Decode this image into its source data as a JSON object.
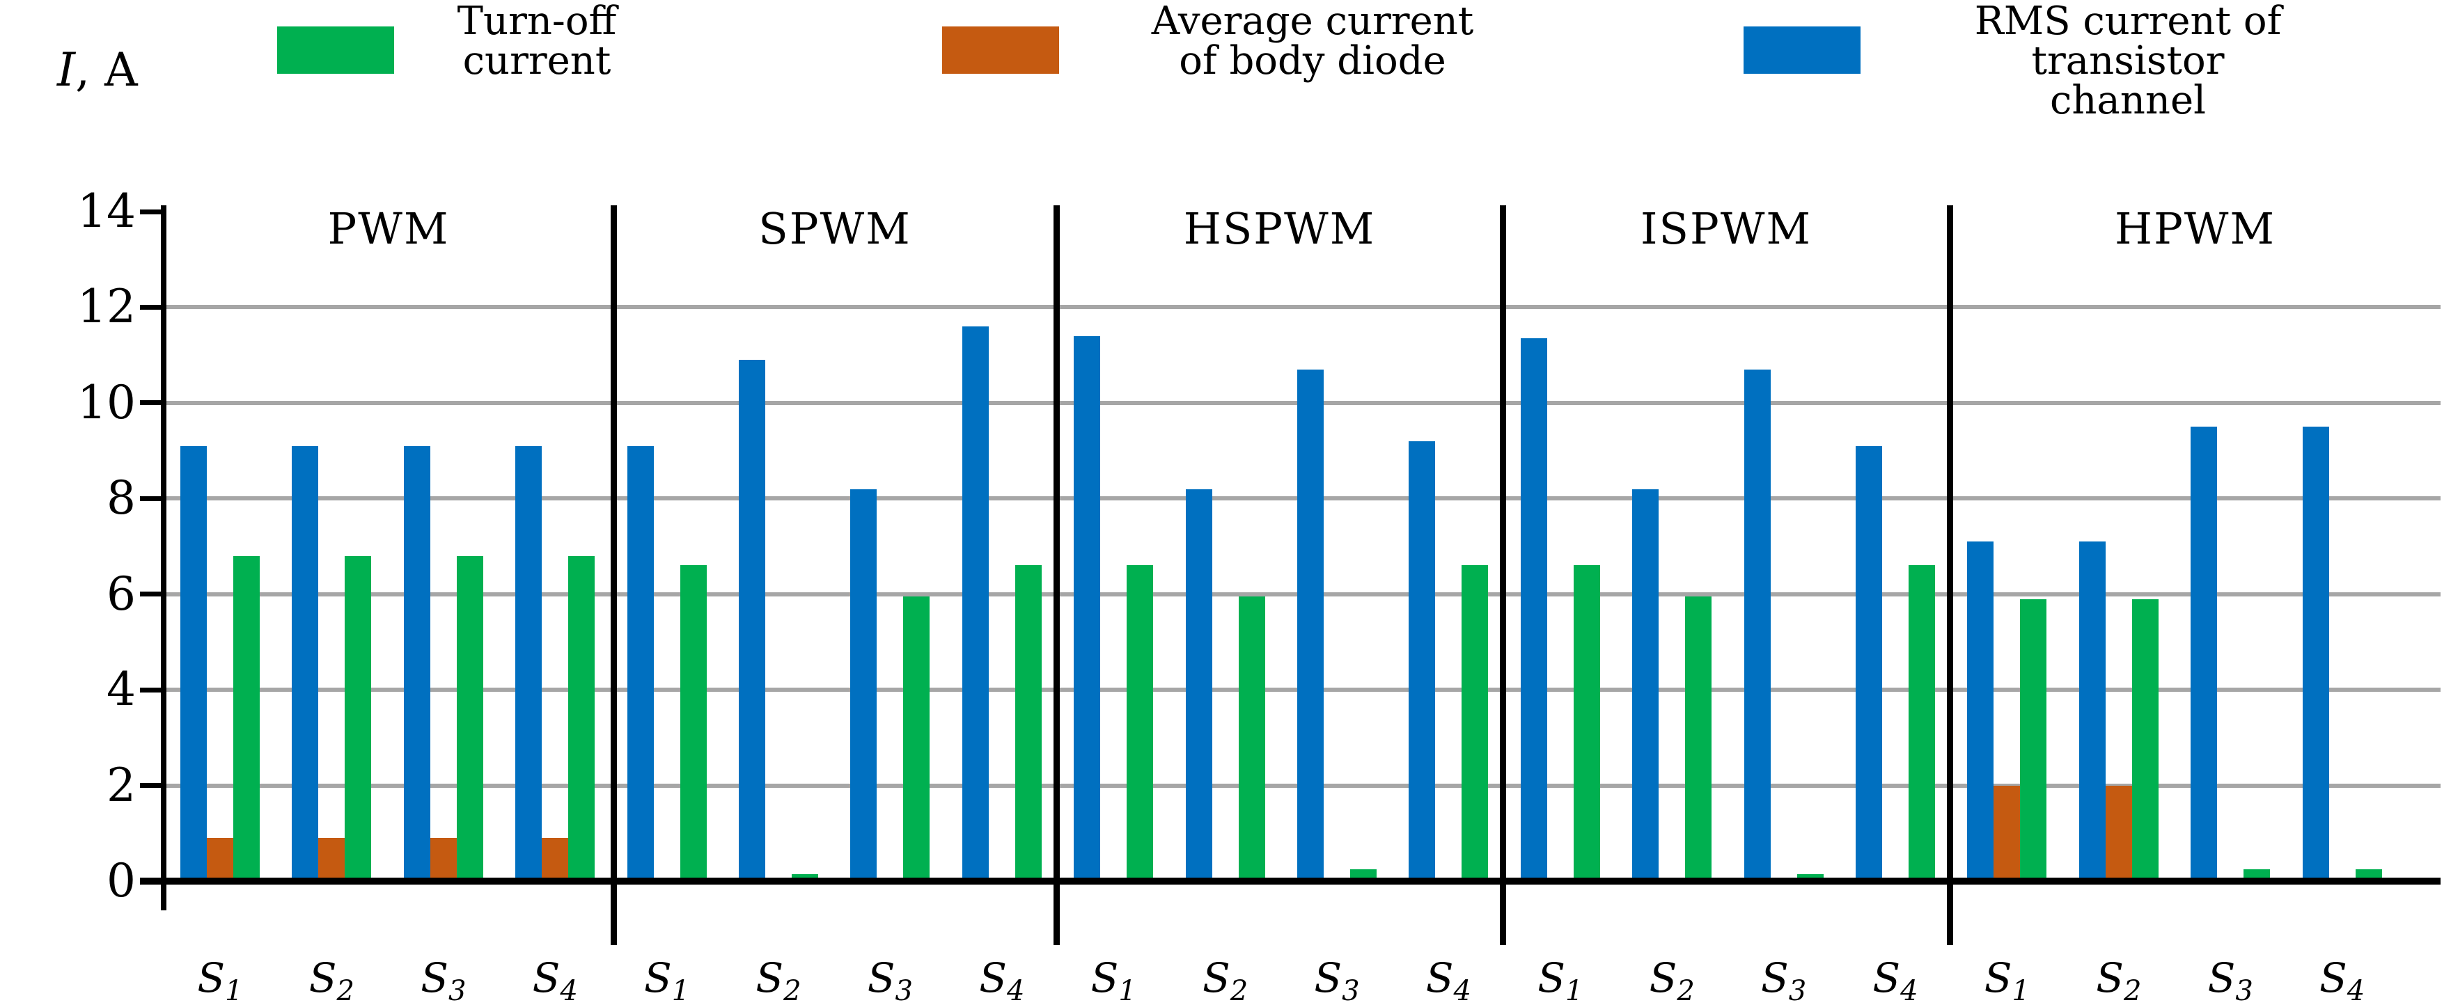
{
  "chart_data": {
    "type": "bar",
    "title": "",
    "y_axis": {
      "label_italic": "I",
      "label_rest": ", A",
      "min": 0,
      "max": 14,
      "tick_step": 2,
      "ticks": [
        0,
        2,
        4,
        6,
        8,
        10,
        12,
        14
      ],
      "gridlines": [
        2,
        4,
        6,
        8,
        10,
        12
      ],
      "grid": true
    },
    "legend_position": "top",
    "series": [
      {
        "key": "turnoff",
        "name": "Turn-off current",
        "legend_lines": "Turn-off\ncurrent",
        "color": "#00B050"
      },
      {
        "key": "avg_diode",
        "name": "Average current of body diode",
        "legend_lines": "Average current\nof body diode",
        "color": "#C55A11"
      },
      {
        "key": "rms",
        "name": "RMS current of transistor channel",
        "legend_lines": "RMS current of\ntransistor channel",
        "color": "#0070C0"
      }
    ],
    "bar_order_within_switch": [
      "rms",
      "avg_diode",
      "turnoff"
    ],
    "switch_labels": [
      {
        "base": "S",
        "sub": "1"
      },
      {
        "base": "S",
        "sub": "2"
      },
      {
        "base": "S",
        "sub": "3"
      },
      {
        "base": "S",
        "sub": "4"
      }
    ],
    "groups": [
      {
        "name": "PWM",
        "switches": [
          {
            "label": "S1",
            "rms": 9.1,
            "avg_diode": 0.9,
            "turnoff": 6.8
          },
          {
            "label": "S2",
            "rms": 9.1,
            "avg_diode": 0.9,
            "turnoff": 6.8
          },
          {
            "label": "S3",
            "rms": 9.1,
            "avg_diode": 0.9,
            "turnoff": 6.8
          },
          {
            "label": "S4",
            "rms": 9.1,
            "avg_diode": 0.9,
            "turnoff": 6.8
          }
        ]
      },
      {
        "name": "SPWM",
        "switches": [
          {
            "label": "S1",
            "rms": 9.1,
            "avg_diode": 0,
            "turnoff": 6.6
          },
          {
            "label": "S2",
            "rms": 10.9,
            "avg_diode": 0,
            "turnoff": 0.15
          },
          {
            "label": "S3",
            "rms": 8.2,
            "avg_diode": 0,
            "turnoff": 5.95
          },
          {
            "label": "S4",
            "rms": 11.6,
            "avg_diode": 0,
            "turnoff": 6.6
          }
        ]
      },
      {
        "name": "HSPWM",
        "switches": [
          {
            "label": "S1",
            "rms": 11.4,
            "avg_diode": 0,
            "turnoff": 6.6
          },
          {
            "label": "S2",
            "rms": 8.2,
            "avg_diode": 0,
            "turnoff": 5.95
          },
          {
            "label": "S3",
            "rms": 10.7,
            "avg_diode": 0,
            "turnoff": 0.25
          },
          {
            "label": "S4",
            "rms": 9.2,
            "avg_diode": 0,
            "turnoff": 6.6
          }
        ]
      },
      {
        "name": "ISPWM",
        "switches": [
          {
            "label": "S1",
            "rms": 11.35,
            "avg_diode": 0,
            "turnoff": 6.6
          },
          {
            "label": "S2",
            "rms": 8.2,
            "avg_diode": 0,
            "turnoff": 5.95
          },
          {
            "label": "S3",
            "rms": 10.7,
            "avg_diode": 0,
            "turnoff": 0.15
          },
          {
            "label": "S4",
            "rms": 9.1,
            "avg_diode": 0,
            "turnoff": 6.6
          }
        ]
      },
      {
        "name": "HPWM",
        "switches": [
          {
            "label": "S1",
            "rms": 7.1,
            "avg_diode": 2.0,
            "turnoff": 5.9
          },
          {
            "label": "S2",
            "rms": 7.1,
            "avg_diode": 2.0,
            "turnoff": 5.9
          },
          {
            "label": "S3",
            "rms": 9.5,
            "avg_diode": 0,
            "turnoff": 0.25
          },
          {
            "label": "S4",
            "rms": 9.5,
            "avg_diode": 0,
            "turnoff": 0.25
          }
        ]
      }
    ],
    "colors": {
      "grid": "#A6A6A6",
      "axis": "#000000",
      "background": "#FFFFFF",
      "turnoff": "#00B050",
      "avg_diode": "#C55A11",
      "rms": "#0070C0"
    }
  }
}
